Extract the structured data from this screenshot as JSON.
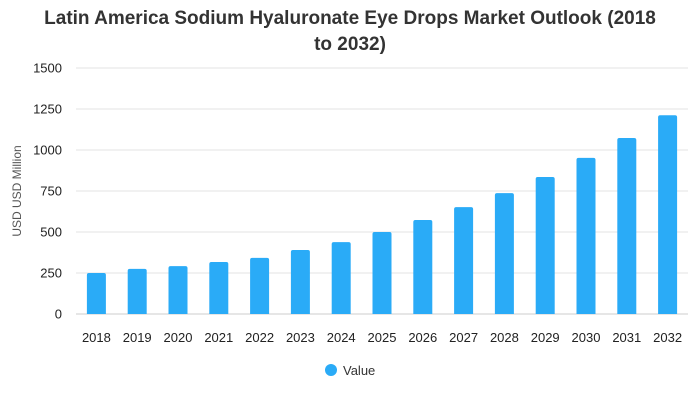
{
  "chart_data": {
    "type": "bar",
    "title_line1": "Latin America Sodium Hyaluronate Eye Drops Market Outlook (2018",
    "title_line2": "to 2032)",
    "xlabel": "",
    "ylabel": "USD USD Million",
    "categories": [
      "2018",
      "2019",
      "2020",
      "2021",
      "2022",
      "2023",
      "2024",
      "2025",
      "2026",
      "2027",
      "2028",
      "2029",
      "2030",
      "2031",
      "2032"
    ],
    "series": [
      {
        "name": "Value",
        "color": "#2aabf7",
        "values": [
          250,
          275,
          292,
          317,
          342,
          390,
          438,
          500,
          573,
          652,
          737,
          835,
          952,
          1073,
          1212
        ]
      }
    ],
    "ylim": [
      0,
      1500
    ],
    "yticks": [
      "0",
      "250",
      "500",
      "750",
      "1000",
      "1250",
      "1500"
    ],
    "ytick_values": [
      0,
      250,
      500,
      750,
      1000,
      1250,
      1500
    ],
    "grid": true,
    "legend": "bottom-center"
  }
}
